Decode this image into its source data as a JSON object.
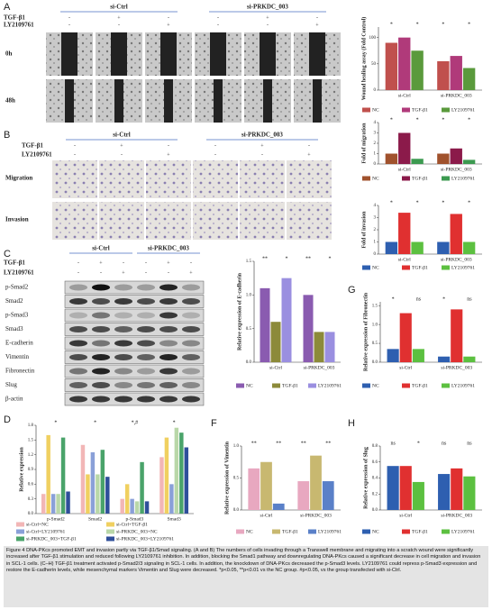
{
  "figure": {
    "panel_labels": [
      "A",
      "B",
      "C",
      "D",
      "F",
      "G",
      "H"
    ],
    "A": {
      "groups": [
        "si-Ctrl",
        "si-PRKDC_003"
      ],
      "row_names": [
        "TGF-β1",
        "LY2109761"
      ],
      "tgf_signs": [
        "-",
        "+",
        "-",
        "-",
        "+",
        "-"
      ],
      "ly_signs": [
        "-",
        "-",
        "+",
        "-",
        "-",
        "+"
      ],
      "image_rows": [
        "0h",
        "48h"
      ]
    },
    "B": {
      "groups": [
        "si-Ctrl",
        "si-PRKDC_003"
      ],
      "row_names": [
        "TGF-β1",
        "LY2109761"
      ],
      "tgf_signs": [
        "-",
        "+",
        "-",
        "-",
        "+",
        "-"
      ],
      "ly_signs": [
        "-",
        "-",
        "+",
        "-",
        "-",
        "+"
      ],
      "image_rows": [
        "Migration",
        "Invasion"
      ]
    },
    "C": {
      "groups": [
        "si-Ctrl",
        "si-PRKDC_003"
      ],
      "row_names": [
        "TGF-β1",
        "LY2109761"
      ],
      "tgf_signs": [
        "-",
        "+",
        "-",
        "-",
        "+",
        "-"
      ],
      "ly_signs": [
        "-",
        "-",
        "+",
        "-",
        "-",
        "+"
      ],
      "blot_rows": [
        "p-Smad2",
        "Smad2",
        "p-Smad3",
        "Smad3",
        "E-cadherin",
        "Vimentin",
        "Fibronectin",
        "Slug",
        "β-actin"
      ]
    },
    "caption": "Figure 4 DNA-PKcs promoted EMT and invasion partly via TGF-β1/Smad signaling. (A and B) The numbers of cells invading through a Transwell membrane and migrating into a scratch wound were significantly increased after TGF-β1 stimulation and reduced following LY2109761 inhibition. In addition, blocking the Smad1 pathway and downregulating DNA-PKcs caused a significant decrease in cell migration and invasion in SCL-1 cells. (C–H) TGF-β1 treatment activated p-Smad2/3 signaling in SCL-1 cells. In addition, the knockdown of DNA-PKcs decreased the p-Smad3 levels. LY2109761 could repress p-Smad3 expression and restore the E-cadherin levels, while mesenchymal markers Vimentin and Slug were decreased. *p<0.05, **p<0.01 vs the NC group. #p<0.05, vs the group transfected with si-Ctrl."
  },
  "chart_data": [
    {
      "type": "bar",
      "ylabel": "Wound healing assay (Fold Control)",
      "categories": [
        "si-Ctrl",
        "si-PRKDC_003"
      ],
      "series": [
        {
          "name": "NC",
          "color": "#c0504d",
          "values": [
            90,
            55
          ]
        },
        {
          "name": "TGF-β1",
          "color": "#b03a7a",
          "values": [
            100,
            65
          ]
        },
        {
          "name": "LY2109761",
          "color": "#5a9a3c",
          "values": [
            75,
            42
          ]
        }
      ],
      "ylim": [
        0,
        120
      ],
      "yticks": [
        0,
        50,
        100
      ],
      "annotations": [
        "*",
        "*",
        "*",
        "*"
      ]
    },
    {
      "type": "bar",
      "ylabel": "Fold of migration",
      "categories": [
        "si-Ctrl",
        "si-PRKDC_003"
      ],
      "series": [
        {
          "name": "NC",
          "color": "#a0522d",
          "values": [
            1.0,
            1.0
          ]
        },
        {
          "name": "TGF-β1",
          "color": "#8b1a4a",
          "values": [
            3.0,
            1.5
          ]
        },
        {
          "name": "LY2109761",
          "color": "#3c9a50",
          "values": [
            0.5,
            0.4
          ]
        }
      ],
      "ylim": [
        0,
        4
      ],
      "yticks": [
        0,
        1,
        2,
        3,
        4
      ],
      "annotations": [
        "*",
        "*",
        "*",
        "*"
      ]
    },
    {
      "type": "bar",
      "ylabel": "Fold of invasion",
      "categories": [
        "si-Ctrl",
        "si-PRKDC_003"
      ],
      "series": [
        {
          "name": "NC",
          "color": "#2e5fb0",
          "values": [
            1.0,
            1.0
          ]
        },
        {
          "name": "TGF-β1",
          "color": "#e03030",
          "values": [
            3.4,
            3.3
          ]
        },
        {
          "name": "LY2109761",
          "color": "#5cc040",
          "values": [
            1.0,
            1.0
          ]
        }
      ],
      "ylim": [
        0,
        4
      ],
      "yticks": [
        0,
        1,
        2,
        3,
        4
      ],
      "annotations": [
        "*",
        "*",
        "*",
        "*"
      ]
    },
    {
      "type": "bar",
      "ylabel": "Relative expression of E-cadherin",
      "categories": [
        "si-Ctrl",
        "si-PRKDC_003"
      ],
      "series": [
        {
          "name": "NC",
          "color": "#8a5bb0",
          "values": [
            1.1,
            1.0
          ]
        },
        {
          "name": "TGF-β1",
          "color": "#8c8a3a",
          "values": [
            0.6,
            0.45
          ]
        },
        {
          "name": "LY2109761",
          "color": "#9a8fe0",
          "values": [
            1.25,
            0.45
          ]
        }
      ],
      "ylim": [
        0,
        1.5
      ],
      "yticks": [
        {
          "value": 0,
          "label": "0.0"
        },
        {
          "value": 0.5,
          "label": "0.5"
        },
        {
          "value": 1,
          "label": "1.0"
        },
        {
          "value": 1.5,
          "label": "1.5"
        }
      ],
      "annotations": [
        "**",
        "*",
        "**",
        "*"
      ]
    },
    {
      "type": "bar",
      "ylabel": "Relative expression of Fibronectin",
      "categories": [
        "si-Ctrl",
        "si-PRKDC_003"
      ],
      "series": [
        {
          "name": "NC",
          "color": "#2e5fb0",
          "values": [
            0.35,
            0.15
          ]
        },
        {
          "name": "TGF-β1",
          "color": "#e03030",
          "values": [
            1.3,
            1.4
          ]
        },
        {
          "name": "LY2109761",
          "color": "#5cc040",
          "values": [
            0.35,
            0.15
          ]
        }
      ],
      "ylim": [
        0,
        1.6
      ],
      "yticks": [
        {
          "value": 0,
          "label": "0.0"
        },
        {
          "value": 0.5,
          "label": "0.5"
        },
        {
          "value": 1,
          "label": "1.0"
        },
        {
          "value": 1.5,
          "label": "1.5"
        }
      ],
      "annotations": [
        "*",
        "ns",
        "*",
        "ns"
      ]
    },
    {
      "type": "bar",
      "ylabel": "Relative expression",
      "categories": [
        "p-Smad2",
        "Smad2",
        "p-Smad3",
        "Smad3"
      ],
      "series": [
        {
          "name": "si-Ctrl+NC",
          "color": "#f2b6b6",
          "values": [
            0.4,
            1.4,
            0.3,
            1.15
          ]
        },
        {
          "name": "si-Ctrl+TGF-β1",
          "color": "#f0d060",
          "values": [
            1.6,
            0.8,
            0.6,
            1.55
          ]
        },
        {
          "name": "si-Ctrl+LY2109761",
          "color": "#8aa0d8",
          "values": [
            0.4,
            1.25,
            0.3,
            0.6
          ]
        },
        {
          "name": "si-PRKDC_003+NC",
          "color": "#b9d7a8",
          "values": [
            0.4,
            0.8,
            0.25,
            1.75
          ]
        },
        {
          "name": "si-PRKDC_003+TGF-β1",
          "color": "#4aa36a",
          "values": [
            1.55,
            1.3,
            1.05,
            1.65
          ]
        },
        {
          "name": "si-PRKDC_003+LY2109761",
          "color": "#2f4f9a",
          "values": [
            0.45,
            0.75,
            0.25,
            1.35
          ]
        }
      ],
      "ylim": [
        0,
        1.8
      ],
      "yticks": [
        {
          "value": 0,
          "label": "0.0"
        },
        {
          "value": 0.3,
          "label": "0.3"
        },
        {
          "value": 0.6,
          "label": "0.6"
        },
        {
          "value": 0.9,
          "label": "0.9"
        },
        {
          "value": 1.2,
          "label": "1.2"
        },
        {
          "value": 1.5,
          "label": "1.5"
        },
        {
          "value": 1.8,
          "label": "1.8"
        }
      ],
      "annotations": [
        "*",
        "*",
        "*,#",
        "*"
      ]
    },
    {
      "type": "bar",
      "ylabel": "Relative expression of Vimentin",
      "categories": [
        "si-Ctrl",
        "si-PRKDC_003"
      ],
      "series": [
        {
          "name": "NC",
          "color": "#e8a8c0",
          "values": [
            0.65,
            0.45
          ]
        },
        {
          "name": "TGF-β1",
          "color": "#c8b870",
          "values": [
            0.75,
            0.85
          ]
        },
        {
          "name": "LY2109761",
          "color": "#5a80c8",
          "values": [
            0.1,
            0.45
          ]
        }
      ],
      "ylim": [
        0,
        1.0
      ],
      "yticks": [
        {
          "value": 0,
          "label": "0.0"
        },
        {
          "value": 0.5,
          "label": "0.5"
        },
        {
          "value": 1,
          "label": "1.0"
        }
      ],
      "annotations": [
        "**",
        "**",
        "**",
        "**"
      ]
    },
    {
      "type": "bar",
      "ylabel": "Relative expression of Slug",
      "categories": [
        "si-Ctrl",
        "si-PRKDC_003"
      ],
      "series": [
        {
          "name": "NC",
          "color": "#2e5fb0",
          "values": [
            0.55,
            0.45
          ]
        },
        {
          "name": "TGF-β1",
          "color": "#e03030",
          "values": [
            0.55,
            0.52
          ]
        },
        {
          "name": "LY2109761",
          "color": "#5cc040",
          "values": [
            0.35,
            0.42
          ]
        }
      ],
      "ylim": [
        0,
        0.8
      ],
      "yticks": [
        {
          "value": 0,
          "label": "0.0"
        },
        {
          "value": 0.2,
          "label": "0.2"
        },
        {
          "value": 0.4,
          "label": "0.4"
        },
        {
          "value": 0.6,
          "label": "0.6"
        },
        {
          "value": 0.8,
          "label": "0.8"
        }
      ],
      "annotations": [
        "ns",
        "*",
        "ns",
        "ns"
      ]
    }
  ]
}
